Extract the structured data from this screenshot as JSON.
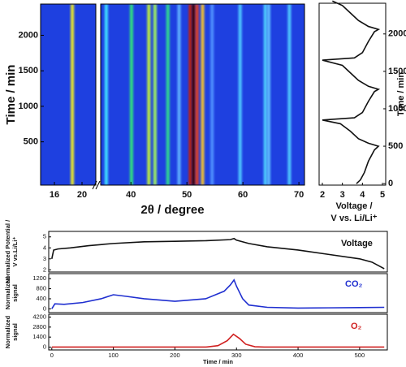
{
  "chart_data": [
    {
      "type": "heatmap",
      "ylabel": "Time / min",
      "xlabel": "2θ / degree",
      "xlim": [
        14,
        71
      ],
      "xbreak": [
        22,
        34.6
      ],
      "xticks": [
        16,
        20,
        40,
        50,
        60,
        70
      ],
      "ylim": [
        -110,
        2440
      ],
      "yticks": [
        500,
        1000,
        1500,
        2000
      ],
      "background": "#1e40e0",
      "peaks": [
        {
          "position": 18.6,
          "color": "#e8e82a"
        },
        {
          "position": 35.6,
          "color": "#40e0ff"
        },
        {
          "position": 40.1,
          "color": "#30e080"
        },
        {
          "position": 43.2,
          "color": "#c0f040"
        },
        {
          "position": 44.3,
          "color": "#a0f060"
        },
        {
          "position": 46.6,
          "color": "#30d890"
        },
        {
          "position": 48.6,
          "color": "#60b0ff"
        },
        {
          "position": 50.6,
          "color": "#c02010"
        },
        {
          "position": 51.2,
          "color": "#400000"
        },
        {
          "position": 51.8,
          "color": "#e04020"
        },
        {
          "position": 52.8,
          "color": "#f0c030"
        },
        {
          "position": 54.5,
          "color": "#5090ff"
        },
        {
          "position": 59.5,
          "color": "#50c8ff"
        },
        {
          "position": 64.0,
          "color": "#50d0ff"
        },
        {
          "position": 64.6,
          "color": "#60c0ff"
        },
        {
          "position": 68.3,
          "color": "#50c8ff"
        }
      ]
    },
    {
      "type": "profile",
      "xlabel": [
        "Voltage /",
        "V vs. Li/Li⁺"
      ],
      "ylabel": "Time / min",
      "xlim": [
        2,
        5
      ],
      "xticks": [
        2,
        3,
        4,
        5
      ],
      "ylim": [
        -20,
        2410
      ],
      "yticks": [
        0,
        500,
        1000,
        1500,
        2000
      ],
      "color": "#111111",
      "x": [
        3.7,
        3.9,
        4.1,
        4.3,
        4.6,
        4.8,
        4.3,
        3.8,
        3.4,
        2.9,
        2.0,
        3.6,
        4.0,
        4.3,
        4.6,
        4.8,
        4.3,
        3.8,
        3.4,
        3.0,
        2.0,
        3.6,
        4.0,
        4.3,
        4.6,
        4.8,
        4.3,
        3.8,
        3.4,
        3.0,
        2.5
      ],
      "y": [
        0,
        50,
        150,
        300,
        450,
        500,
        540,
        600,
        700,
        800,
        850,
        880,
        950,
        1100,
        1230,
        1260,
        1300,
        1380,
        1480,
        1580,
        1650,
        1680,
        1750,
        1900,
        2030,
        2060,
        2100,
        2180,
        2280,
        2380,
        2440
      ]
    },
    {
      "type": "line",
      "label": "Voltage",
      "ylabel": [
        "Normalized Potential /",
        "V vs.Li/Li⁺"
      ],
      "color": "#111111",
      "xlim": [
        -5,
        545
      ],
      "ylim": [
        1.8,
        5.5
      ],
      "yticks": [
        2,
        3,
        4,
        5
      ],
      "x": [
        0,
        3,
        10,
        30,
        60,
        100,
        150,
        200,
        250,
        290,
        296,
        300,
        320,
        350,
        400,
        450,
        500,
        520,
        540
      ],
      "values": [
        3.0,
        3.8,
        3.9,
        4.0,
        4.2,
        4.4,
        4.55,
        4.6,
        4.65,
        4.75,
        4.85,
        4.7,
        4.4,
        4.1,
        3.8,
        3.4,
        3.0,
        2.7,
        2.1
      ]
    },
    {
      "type": "line",
      "label": "CO₂",
      "ylabel": [
        "Normalized",
        "signal"
      ],
      "color": "#1f2fd0",
      "xlim": [
        -5,
        545
      ],
      "ylim": [
        -150,
        1400
      ],
      "yticks": [
        0,
        400,
        800,
        1200
      ],
      "x": [
        0,
        5,
        20,
        50,
        80,
        100,
        120,
        150,
        200,
        250,
        280,
        290,
        296,
        300,
        310,
        320,
        350,
        400,
        450,
        500,
        540
      ],
      "values": [
        0,
        200,
        180,
        250,
        400,
        560,
        500,
        400,
        300,
        400,
        700,
        950,
        1150,
        900,
        400,
        150,
        60,
        30,
        40,
        50,
        60
      ]
    },
    {
      "type": "line",
      "label": "O₂",
      "ylabel": [
        "Normalized",
        "signal"
      ],
      "color": "#d02020",
      "xlim": [
        -5,
        545
      ],
      "ylim": [
        -400,
        4600
      ],
      "yticks": [
        0,
        1400,
        2800,
        4200
      ],
      "xticks": [
        0,
        100,
        200,
        300,
        400,
        500
      ],
      "xlabel": "Time / min",
      "x": [
        0,
        250,
        270,
        285,
        295,
        305,
        315,
        330,
        345,
        540
      ],
      "values": [
        0,
        0,
        200,
        900,
        1800,
        1200,
        400,
        50,
        0,
        0
      ]
    }
  ]
}
